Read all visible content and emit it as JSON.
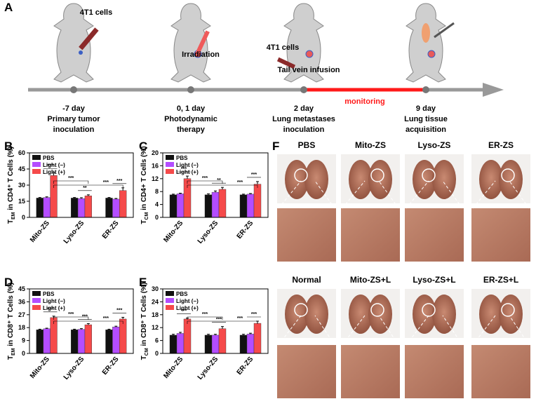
{
  "panel_a": {
    "label": "A",
    "steps": [
      {
        "day": "-7 day",
        "lines": [
          "Primary tumor",
          "inoculation"
        ]
      },
      {
        "day": "0, 1 day",
        "lines": [
          "Photodynamic",
          "therapy"
        ]
      },
      {
        "day": "2 day",
        "lines": [
          "Lung metastases",
          "inoculation"
        ]
      },
      {
        "day": "9 day",
        "lines": [
          "Lung tissue",
          "acquisition"
        ]
      }
    ],
    "callouts": [
      "4T1 cells",
      "Irradiation",
      "4T1 cells",
      "Tail vein infusion"
    ],
    "monitoring": "monitoring"
  },
  "chart_data": [
    {
      "type": "bar",
      "panel": "B",
      "y_label_main": "T",
      "y_label_sub": "EM",
      "y_label_rest": " in CD4⁺ T Cells (%)",
      "categories": [
        "Mito-ZS",
        "Lyso-ZS",
        "ER-ZS"
      ],
      "series": [
        {
          "name": "PBS",
          "color": "#111111",
          "values": [
            18,
            18,
            18
          ],
          "errors": [
            0.5,
            0.5,
            0.5
          ]
        },
        {
          "name": "Light (−)",
          "color": "#b44dff",
          "values": [
            18.5,
            17.5,
            17
          ],
          "errors": [
            0.6,
            0.8,
            0.6
          ]
        },
        {
          "name": "Light (+)",
          "color": "#f54a4a",
          "values": [
            39,
            20,
            25
          ],
          "errors": [
            2.5,
            1,
            2.5
          ]
        }
      ],
      "ylim": [
        0,
        60
      ],
      "yticks": [
        0,
        15,
        30,
        45,
        60
      ],
      "annotations": [
        "***",
        "**",
        "***",
        "***",
        "***"
      ]
    },
    {
      "type": "bar",
      "panel": "C",
      "y_label_main": "T",
      "y_label_sub": "CM",
      "y_label_rest": " in CD4+ T Cells (%)",
      "categories": [
        "Mito-ZS",
        "Lyso-ZS",
        "ER-ZS"
      ],
      "series": [
        {
          "name": "PBS",
          "color": "#111111",
          "values": [
            7,
            7,
            7
          ],
          "errors": [
            0.2,
            0.3,
            0.2
          ]
        },
        {
          "name": "Light (−)",
          "color": "#b44dff",
          "values": [
            7.3,
            7.8,
            7.2
          ],
          "errors": [
            0.2,
            0.4,
            0.2
          ]
        },
        {
          "name": "Light (+)",
          "color": "#f54a4a",
          "values": [
            12,
            8.7,
            10.3
          ],
          "errors": [
            0.8,
            0.6,
            0.8
          ]
        }
      ],
      "ylim": [
        0,
        20
      ],
      "yticks": [
        0,
        4,
        8,
        12,
        16,
        20
      ],
      "annotations": [
        "***",
        "**",
        "***",
        "***",
        "***"
      ]
    },
    {
      "type": "bar",
      "panel": "D",
      "y_label_main": "T",
      "y_label_sub": "EM",
      "y_label_rest": " in CD8⁺ T Cells (%)",
      "categories": [
        "Mito-ZS",
        "Lyso-ZS",
        "ER-ZS"
      ],
      "series": [
        {
          "name": "PBS",
          "color": "#111111",
          "values": [
            16.5,
            16.5,
            16.5
          ],
          "errors": [
            0.4,
            0.4,
            0.4
          ]
        },
        {
          "name": "Light (−)",
          "color": "#b44dff",
          "values": [
            17.2,
            16.8,
            18.5
          ],
          "errors": [
            0.4,
            0.5,
            0.5
          ]
        },
        {
          "name": "Light (+)",
          "color": "#f54a4a",
          "values": [
            25,
            20,
            24
          ],
          "errors": [
            1,
            0.8,
            1.2
          ]
        }
      ],
      "ylim": [
        0,
        45
      ],
      "yticks": [
        0,
        9,
        18,
        27,
        36,
        45
      ],
      "annotations": [
        "***",
        "***",
        "***",
        "***",
        "***"
      ]
    },
    {
      "type": "bar",
      "panel": "E",
      "y_label_main": "T",
      "y_label_sub": "CM",
      "y_label_rest": " in CD8⁺ T Cells (%)",
      "categories": [
        "Mito-ZS",
        "Lyso-ZS",
        "ER-ZS"
      ],
      "series": [
        {
          "name": "PBS",
          "color": "#111111",
          "values": [
            8.5,
            8.5,
            8.5
          ],
          "errors": [
            0.4,
            0.4,
            0.4
          ]
        },
        {
          "name": "Light (−)",
          "color": "#b44dff",
          "values": [
            9.3,
            8.5,
            9
          ],
          "errors": [
            0.5,
            0.4,
            0.4
          ]
        },
        {
          "name": "Light (+)",
          "color": "#f54a4a",
          "values": [
            16,
            11.5,
            14
          ],
          "errors": [
            0.4,
            1,
            1
          ]
        }
      ],
      "ylim": [
        0,
        30
      ],
      "yticks": [
        0,
        6,
        12,
        18,
        24,
        30
      ],
      "annotations": [
        "***",
        "***",
        "***",
        "***",
        "***"
      ]
    }
  ],
  "panel_f": {
    "label": "F",
    "top_labels": [
      "PBS",
      "Mito-ZS",
      "Lyso-ZS",
      "ER-ZS"
    ],
    "bottom_labels": [
      "Normal",
      "Mito-ZS+L",
      "Lyso-ZS+L",
      "ER-ZS+L"
    ]
  }
}
